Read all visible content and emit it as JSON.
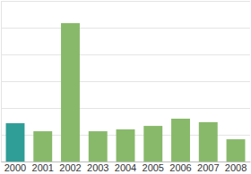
{
  "chart_data": {
    "type": "bar",
    "categories": [
      "2000",
      "2001",
      "2002",
      "2003",
      "2004",
      "2005",
      "2006",
      "2007",
      "2008"
    ],
    "values": [
      1.43,
      1.13,
      5.17,
      1.13,
      1.2,
      1.33,
      1.6,
      1.47,
      0.83
    ],
    "colors": [
      "#2e9e97",
      "#88b96a",
      "#88b96a",
      "#88b96a",
      "#88b96a",
      "#88b96a",
      "#88b96a",
      "#88b96a",
      "#88b96a"
    ],
    "ylim": [
      0,
      6
    ],
    "yticks": [
      0,
      1,
      2,
      3,
      4,
      5,
      6
    ],
    "grid": true,
    "tick_labels": "x"
  }
}
